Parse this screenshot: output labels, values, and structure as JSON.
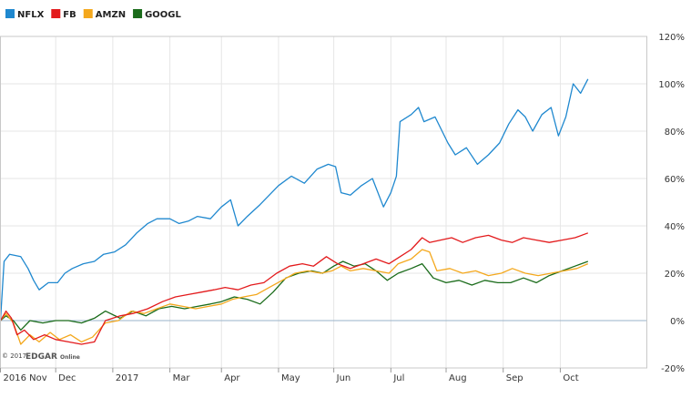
{
  "chart_data": {
    "type": "line",
    "ylim": [
      -20,
      120
    ],
    "y_ticks": [
      -20,
      0,
      20,
      40,
      60,
      80,
      100,
      120
    ],
    "y_tick_labels": [
      "-20%",
      "0%",
      "20%",
      "40%",
      "60%",
      "80%",
      "100%",
      "120%"
    ],
    "x_range": [
      "2016-11-01",
      "2017-10-18"
    ],
    "x_ticks": [
      {
        "date": "2016-11-01",
        "label": "2016 Nov"
      },
      {
        "date": "2016-12-01",
        "label": "Dec"
      },
      {
        "date": "2017-01-01",
        "label": "2017"
      },
      {
        "date": "2017-02-01",
        "label": "Mar"
      },
      {
        "date": "2017-03-01",
        "label": "Apr"
      },
      {
        "date": "2017-04-01",
        "label": "May"
      },
      {
        "date": "2017-05-01",
        "label": "Jun"
      },
      {
        "date": "2017-06-01",
        "label": "Jul"
      },
      {
        "date": "2017-07-01",
        "label": "Aug"
      },
      {
        "date": "2017-08-01",
        "label": "Sep"
      },
      {
        "date": "2017-09-01",
        "label": "Oct"
      }
    ],
    "grid": true,
    "legend_position": "top-left",
    "series": [
      {
        "name": "NFLX",
        "color": "#1f88cf",
        "points": [
          [
            "2016-11-01",
            0
          ],
          [
            "2016-11-03",
            25
          ],
          [
            "2016-11-06",
            28
          ],
          [
            "2016-11-12",
            27
          ],
          [
            "2016-11-16",
            22
          ],
          [
            "2016-11-19",
            17
          ],
          [
            "2016-11-22",
            13
          ],
          [
            "2016-11-27",
            16
          ],
          [
            "2016-12-02",
            16
          ],
          [
            "2016-12-06",
            20
          ],
          [
            "2016-12-10",
            22
          ],
          [
            "2016-12-16",
            24
          ],
          [
            "2016-12-22",
            25
          ],
          [
            "2016-12-27",
            28
          ],
          [
            "2017-01-02",
            29
          ],
          [
            "2017-01-08",
            32
          ],
          [
            "2017-01-14",
            37
          ],
          [
            "2017-01-20",
            41
          ],
          [
            "2017-01-25",
            43
          ],
          [
            "2017-02-01",
            43
          ],
          [
            "2017-02-06",
            41
          ],
          [
            "2017-02-11",
            42
          ],
          [
            "2017-02-16",
            44
          ],
          [
            "2017-02-23",
            43
          ],
          [
            "2017-03-01",
            48
          ],
          [
            "2017-03-06",
            51
          ],
          [
            "2017-03-10",
            40
          ],
          [
            "2017-03-15",
            44
          ],
          [
            "2017-03-22",
            49
          ],
          [
            "2017-04-01",
            57
          ],
          [
            "2017-04-08",
            61
          ],
          [
            "2017-04-15",
            58
          ],
          [
            "2017-04-22",
            64
          ],
          [
            "2017-04-28",
            66
          ],
          [
            "2017-05-02",
            65
          ],
          [
            "2017-05-05",
            54
          ],
          [
            "2017-05-10",
            53
          ],
          [
            "2017-05-16",
            57
          ],
          [
            "2017-05-22",
            60
          ],
          [
            "2017-05-28",
            48
          ],
          [
            "2017-06-01",
            54
          ],
          [
            "2017-06-04",
            61
          ],
          [
            "2017-06-06",
            84
          ],
          [
            "2017-06-12",
            87
          ],
          [
            "2017-06-16",
            90
          ],
          [
            "2017-06-19",
            84
          ],
          [
            "2017-06-25",
            86
          ],
          [
            "2017-07-02",
            75
          ],
          [
            "2017-07-06",
            70
          ],
          [
            "2017-07-12",
            73
          ],
          [
            "2017-07-18",
            66
          ],
          [
            "2017-07-24",
            70
          ],
          [
            "2017-07-30",
            75
          ],
          [
            "2017-08-04",
            83
          ],
          [
            "2017-08-09",
            89
          ],
          [
            "2017-08-13",
            86
          ],
          [
            "2017-08-17",
            80
          ],
          [
            "2017-08-22",
            87
          ],
          [
            "2017-08-27",
            90
          ],
          [
            "2017-08-31",
            78
          ],
          [
            "2017-09-04",
            86
          ],
          [
            "2017-09-08",
            100
          ],
          [
            "2017-09-12",
            96
          ],
          [
            "2017-09-16",
            102
          ]
        ]
      },
      {
        "name": "FB",
        "color": "#e31a1c",
        "points": [
          [
            "2016-11-01",
            0
          ],
          [
            "2016-11-04",
            4
          ],
          [
            "2016-11-07",
            1
          ],
          [
            "2016-11-10",
            -6
          ],
          [
            "2016-11-14",
            -4
          ],
          [
            "2016-11-19",
            -8
          ],
          [
            "2016-11-25",
            -6
          ],
          [
            "2016-12-01",
            -8
          ],
          [
            "2016-12-08",
            -9
          ],
          [
            "2016-12-15",
            -10
          ],
          [
            "2016-12-22",
            -9
          ],
          [
            "2016-12-28",
            0
          ],
          [
            "2017-01-05",
            2
          ],
          [
            "2017-01-12",
            3
          ],
          [
            "2017-01-20",
            5
          ],
          [
            "2017-01-28",
            8
          ],
          [
            "2017-02-04",
            10
          ],
          [
            "2017-02-11",
            11
          ],
          [
            "2017-02-18",
            12
          ],
          [
            "2017-02-25",
            13
          ],
          [
            "2017-03-03",
            14
          ],
          [
            "2017-03-10",
            13
          ],
          [
            "2017-03-17",
            15
          ],
          [
            "2017-03-24",
            16
          ],
          [
            "2017-03-31",
            20
          ],
          [
            "2017-04-07",
            23
          ],
          [
            "2017-04-14",
            24
          ],
          [
            "2017-04-20",
            23
          ],
          [
            "2017-04-27",
            27
          ],
          [
            "2017-05-03",
            24
          ],
          [
            "2017-05-10",
            22
          ],
          [
            "2017-05-17",
            24
          ],
          [
            "2017-05-24",
            26
          ],
          [
            "2017-05-31",
            24
          ],
          [
            "2017-06-06",
            27
          ],
          [
            "2017-06-12",
            30
          ],
          [
            "2017-06-18",
            35
          ],
          [
            "2017-06-22",
            33
          ],
          [
            "2017-06-28",
            34
          ],
          [
            "2017-07-04",
            35
          ],
          [
            "2017-07-10",
            33
          ],
          [
            "2017-07-17",
            35
          ],
          [
            "2017-07-24",
            36
          ],
          [
            "2017-07-31",
            34
          ],
          [
            "2017-08-06",
            33
          ],
          [
            "2017-08-12",
            35
          ],
          [
            "2017-08-19",
            34
          ],
          [
            "2017-08-26",
            33
          ],
          [
            "2017-09-02",
            34
          ],
          [
            "2017-09-09",
            35
          ],
          [
            "2017-09-16",
            37
          ]
        ]
      },
      {
        "name": "AMZN",
        "color": "#f4a81d",
        "points": [
          [
            "2016-11-01",
            0
          ],
          [
            "2016-11-04",
            3
          ],
          [
            "2016-11-08",
            -1
          ],
          [
            "2016-11-12",
            -10
          ],
          [
            "2016-11-17",
            -6
          ],
          [
            "2016-11-22",
            -9
          ],
          [
            "2016-11-28",
            -5
          ],
          [
            "2016-12-03",
            -8
          ],
          [
            "2016-12-09",
            -6
          ],
          [
            "2016-12-15",
            -9
          ],
          [
            "2016-12-21",
            -7
          ],
          [
            "2016-12-28",
            -1
          ],
          [
            "2017-01-04",
            0
          ],
          [
            "2017-01-11",
            4
          ],
          [
            "2017-01-18",
            3
          ],
          [
            "2017-01-25",
            5
          ],
          [
            "2017-02-01",
            7
          ],
          [
            "2017-02-08",
            6
          ],
          [
            "2017-02-15",
            5
          ],
          [
            "2017-02-22",
            6
          ],
          [
            "2017-03-01",
            7
          ],
          [
            "2017-03-07",
            9
          ],
          [
            "2017-03-13",
            10
          ],
          [
            "2017-03-20",
            11
          ],
          [
            "2017-03-27",
            14
          ],
          [
            "2017-04-03",
            17
          ],
          [
            "2017-04-10",
            20
          ],
          [
            "2017-04-17",
            21
          ],
          [
            "2017-04-24",
            20
          ],
          [
            "2017-04-30",
            21
          ],
          [
            "2017-05-05",
            23
          ],
          [
            "2017-05-10",
            21
          ],
          [
            "2017-05-17",
            22
          ],
          [
            "2017-05-24",
            21
          ],
          [
            "2017-05-31",
            20
          ],
          [
            "2017-06-05",
            24
          ],
          [
            "2017-06-12",
            26
          ],
          [
            "2017-06-18",
            30
          ],
          [
            "2017-06-22",
            29
          ],
          [
            "2017-06-26",
            21
          ],
          [
            "2017-07-03",
            22
          ],
          [
            "2017-07-10",
            20
          ],
          [
            "2017-07-17",
            21
          ],
          [
            "2017-07-24",
            19
          ],
          [
            "2017-07-31",
            20
          ],
          [
            "2017-08-06",
            22
          ],
          [
            "2017-08-13",
            20
          ],
          [
            "2017-08-20",
            19
          ],
          [
            "2017-08-27",
            20
          ],
          [
            "2017-09-03",
            21
          ],
          [
            "2017-09-10",
            22
          ],
          [
            "2017-09-16",
            24
          ]
        ]
      },
      {
        "name": "GOOGL",
        "color": "#1a6b1a",
        "points": [
          [
            "2016-11-01",
            0
          ],
          [
            "2016-11-04",
            2
          ],
          [
            "2016-11-08",
            0
          ],
          [
            "2016-11-12",
            -4
          ],
          [
            "2016-11-17",
            0
          ],
          [
            "2016-11-24",
            -1
          ],
          [
            "2016-12-01",
            0
          ],
          [
            "2016-12-08",
            0
          ],
          [
            "2016-12-15",
            -1
          ],
          [
            "2016-12-22",
            1
          ],
          [
            "2016-12-28",
            4
          ],
          [
            "2017-01-05",
            1
          ],
          [
            "2017-01-12",
            4
          ],
          [
            "2017-01-19",
            2
          ],
          [
            "2017-01-26",
            5
          ],
          [
            "2017-02-02",
            6
          ],
          [
            "2017-02-09",
            5
          ],
          [
            "2017-02-16",
            6
          ],
          [
            "2017-02-23",
            7
          ],
          [
            "2017-03-01",
            8
          ],
          [
            "2017-03-08",
            10
          ],
          [
            "2017-03-15",
            9
          ],
          [
            "2017-03-22",
            7
          ],
          [
            "2017-03-29",
            12
          ],
          [
            "2017-04-05",
            18
          ],
          [
            "2017-04-12",
            20
          ],
          [
            "2017-04-19",
            21
          ],
          [
            "2017-04-25",
            20
          ],
          [
            "2017-05-01",
            23
          ],
          [
            "2017-05-06",
            25
          ],
          [
            "2017-05-12",
            23
          ],
          [
            "2017-05-18",
            24
          ],
          [
            "2017-05-24",
            21
          ],
          [
            "2017-05-30",
            17
          ],
          [
            "2017-06-05",
            20
          ],
          [
            "2017-06-12",
            22
          ],
          [
            "2017-06-18",
            24
          ],
          [
            "2017-06-24",
            18
          ],
          [
            "2017-07-01",
            16
          ],
          [
            "2017-07-08",
            17
          ],
          [
            "2017-07-15",
            15
          ],
          [
            "2017-07-22",
            17
          ],
          [
            "2017-07-29",
            16
          ],
          [
            "2017-08-05",
            16
          ],
          [
            "2017-08-12",
            18
          ],
          [
            "2017-08-19",
            16
          ],
          [
            "2017-08-26",
            19
          ],
          [
            "2017-09-02",
            21
          ],
          [
            "2017-09-09",
            23
          ],
          [
            "2017-09-16",
            25
          ]
        ]
      }
    ]
  },
  "footer": {
    "copyright": "© 2017",
    "brand": "EDGAR",
    "brand_sub": "Online"
  }
}
